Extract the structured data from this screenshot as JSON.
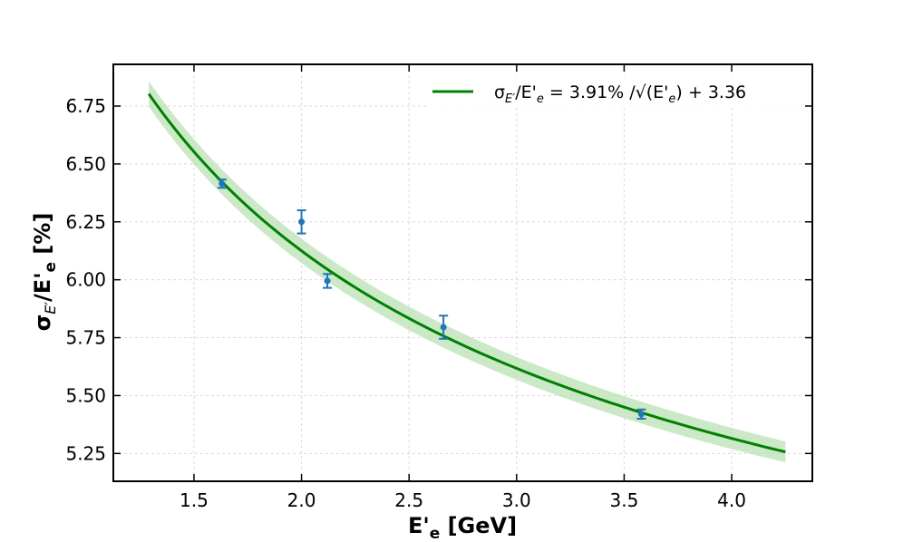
{
  "chart_data": {
    "type": "line",
    "title": "",
    "xlabel": "E'e [GeV]",
    "xlabel_parts": {
      "main": "E'",
      "sub": "e",
      "rest": " [GeV]"
    },
    "ylabel": "σE'/E'e [%]",
    "ylabel_parts": {
      "sigma": "σ",
      "sigma_sub": "E′",
      "slash": "/E'",
      "e_sub": "e",
      "rest": " [%]"
    },
    "xlim": [
      1.125,
      4.375
    ],
    "ylim": [
      5.13,
      6.93
    ],
    "xticks": [
      1.5,
      2.0,
      2.5,
      3.0,
      3.5,
      4.0
    ],
    "xtick_labels": [
      "1.5",
      "2.0",
      "2.5",
      "3.0",
      "3.5",
      "4.0"
    ],
    "yticks": [
      5.25,
      5.5,
      5.75,
      6.0,
      6.25,
      6.5,
      6.75
    ],
    "ytick_labels": [
      "5.25",
      "5.50",
      "5.75",
      "6.00",
      "6.25",
      "6.50",
      "6.75"
    ],
    "grid": true,
    "legend_position": "top-right",
    "fit": {
      "name": "σE'/E'e = 3.91% /√(E'e) + 3.36",
      "legend_parts": {
        "sigma": "σ",
        "sigma_sub": "E′",
        "mid": "/E'",
        "e_sub": "e",
        "eq": " = 3.91% /√(E'",
        "e_sub2": "e",
        "tail": ") + 3.36"
      },
      "a": 3.91,
      "b": 3.36,
      "x_range": [
        1.29,
        4.25
      ],
      "band_halfwidth": [
        0.055,
        0.045
      ],
      "color": "#008000",
      "band_color": "#b9e0b4"
    },
    "series": [
      {
        "name": "data",
        "color": "#1f77b4",
        "x": [
          1.63,
          2.0,
          2.12,
          2.66,
          3.58
        ],
        "y": [
          6.415,
          6.25,
          5.995,
          5.795,
          5.42
        ],
        "yerr": [
          0.018,
          0.05,
          0.03,
          0.05,
          0.02
        ]
      }
    ]
  }
}
